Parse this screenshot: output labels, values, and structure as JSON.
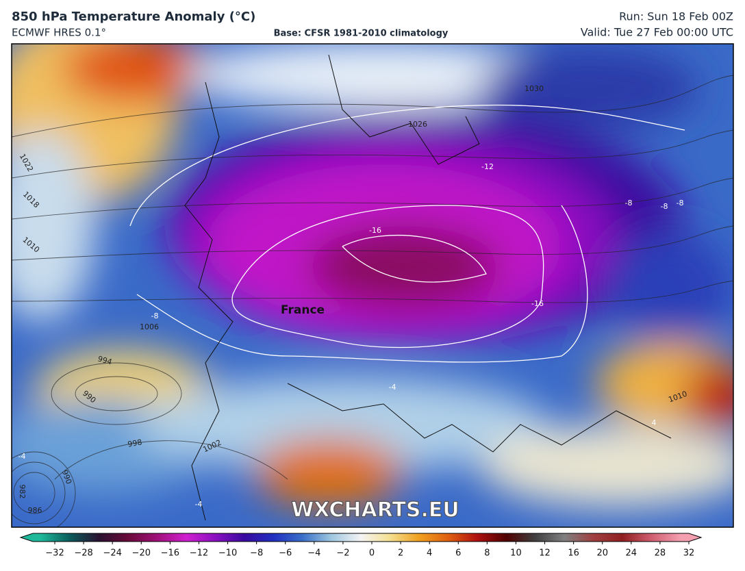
{
  "header": {
    "title": "850 hPa Temperature Anomaly (°C)",
    "model": "ECMWF HRES 0.1°",
    "base": "Base: CFSR 1981-2010 climatology",
    "run": "Run: Sun 18 Feb 00Z",
    "valid": "Valid: Tue 27 Feb 00:00 UTC"
  },
  "map": {
    "place_labels": [
      "France"
    ],
    "watermark": "WXCHARTS.EU",
    "contour_labels": [
      "1022",
      "1018",
      "1010",
      "1030",
      "1026",
      "-12",
      "-16",
      "-16",
      "-8",
      "1006",
      "994",
      "990",
      "998",
      "1002",
      "990",
      "982",
      "986",
      "-4",
      "-4",
      "-4",
      "-8",
      "-8",
      "-8",
      "4",
      "1010"
    ]
  },
  "colorbar": {
    "ticks": [
      "−32",
      "−28",
      "−24",
      "−20",
      "−16",
      "−12",
      "−10",
      "−8",
      "−6",
      "−4",
      "−2",
      "0",
      "2",
      "4",
      "6",
      "8",
      "10",
      "12",
      "16",
      "20",
      "24",
      "28",
      "32"
    ],
    "colors": [
      "#1fb89a",
      "#0b5b5b",
      "#2a1030",
      "#6a0a3a",
      "#a0107a",
      "#d020d0",
      "#8a10c0",
      "#3a0aa0",
      "#2030c0",
      "#3a70c8",
      "#a0c8e0",
      "#f4f4f4",
      "#f4e090",
      "#f0a020",
      "#e06010",
      "#b01010",
      "#500000",
      "#404040",
      "#808080",
      "#a04040",
      "#902020",
      "#d06070",
      "#f4a0b0"
    ]
  }
}
